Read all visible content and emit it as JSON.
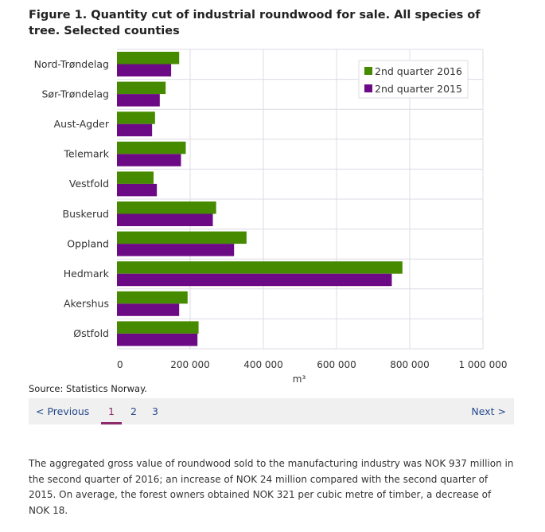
{
  "title": "Figure 1. Quantity cut of industrial roundwood for sale. All species of tree. Selected counties",
  "source": "Source: Statistics Norway.",
  "pager": {
    "previous": "< Previous",
    "pages": [
      "1",
      "2",
      "3"
    ],
    "current": "1",
    "next": "Next >"
  },
  "body_text": "The aggregated gross value of roundwood sold to the manufacturing industry was NOK 937 million in the second quarter of 2016; an increase of NOK 24 million compared with the second quarter of 2015. On average, the forest owners obtained NOK 321 per cubic metre of timber, a decrease of NOK 18.",
  "chart_data": {
    "type": "bar",
    "orientation": "horizontal",
    "categories": [
      "Nord-Trøndelag",
      "Sør-Trøndelag",
      "Aust-Agder",
      "Telemark",
      "Vestfold",
      "Buskerud",
      "Oppland",
      "Hedmark",
      "Akershus",
      "Østfold"
    ],
    "series": [
      {
        "name": "2nd quarter 2016",
        "color": "#468a00",
        "values": [
          170000,
          133000,
          104000,
          188000,
          100000,
          271000,
          354000,
          780000,
          193000,
          223000
        ]
      },
      {
        "name": "2nd quarter 2015",
        "color": "#6c0a85",
        "values": [
          148000,
          117000,
          96000,
          175000,
          109000,
          262000,
          320000,
          751000,
          170000,
          220000
        ]
      }
    ],
    "xlabel": "m³",
    "xlim": [
      0,
      1000000
    ],
    "xticks": [
      0,
      200000,
      400000,
      600000,
      800000,
      1000000
    ],
    "xtick_labels": [
      "0",
      "200 000",
      "400 000",
      "600 000",
      "800 000",
      "1 000 000"
    ],
    "grid": true,
    "legend": "top-right"
  }
}
